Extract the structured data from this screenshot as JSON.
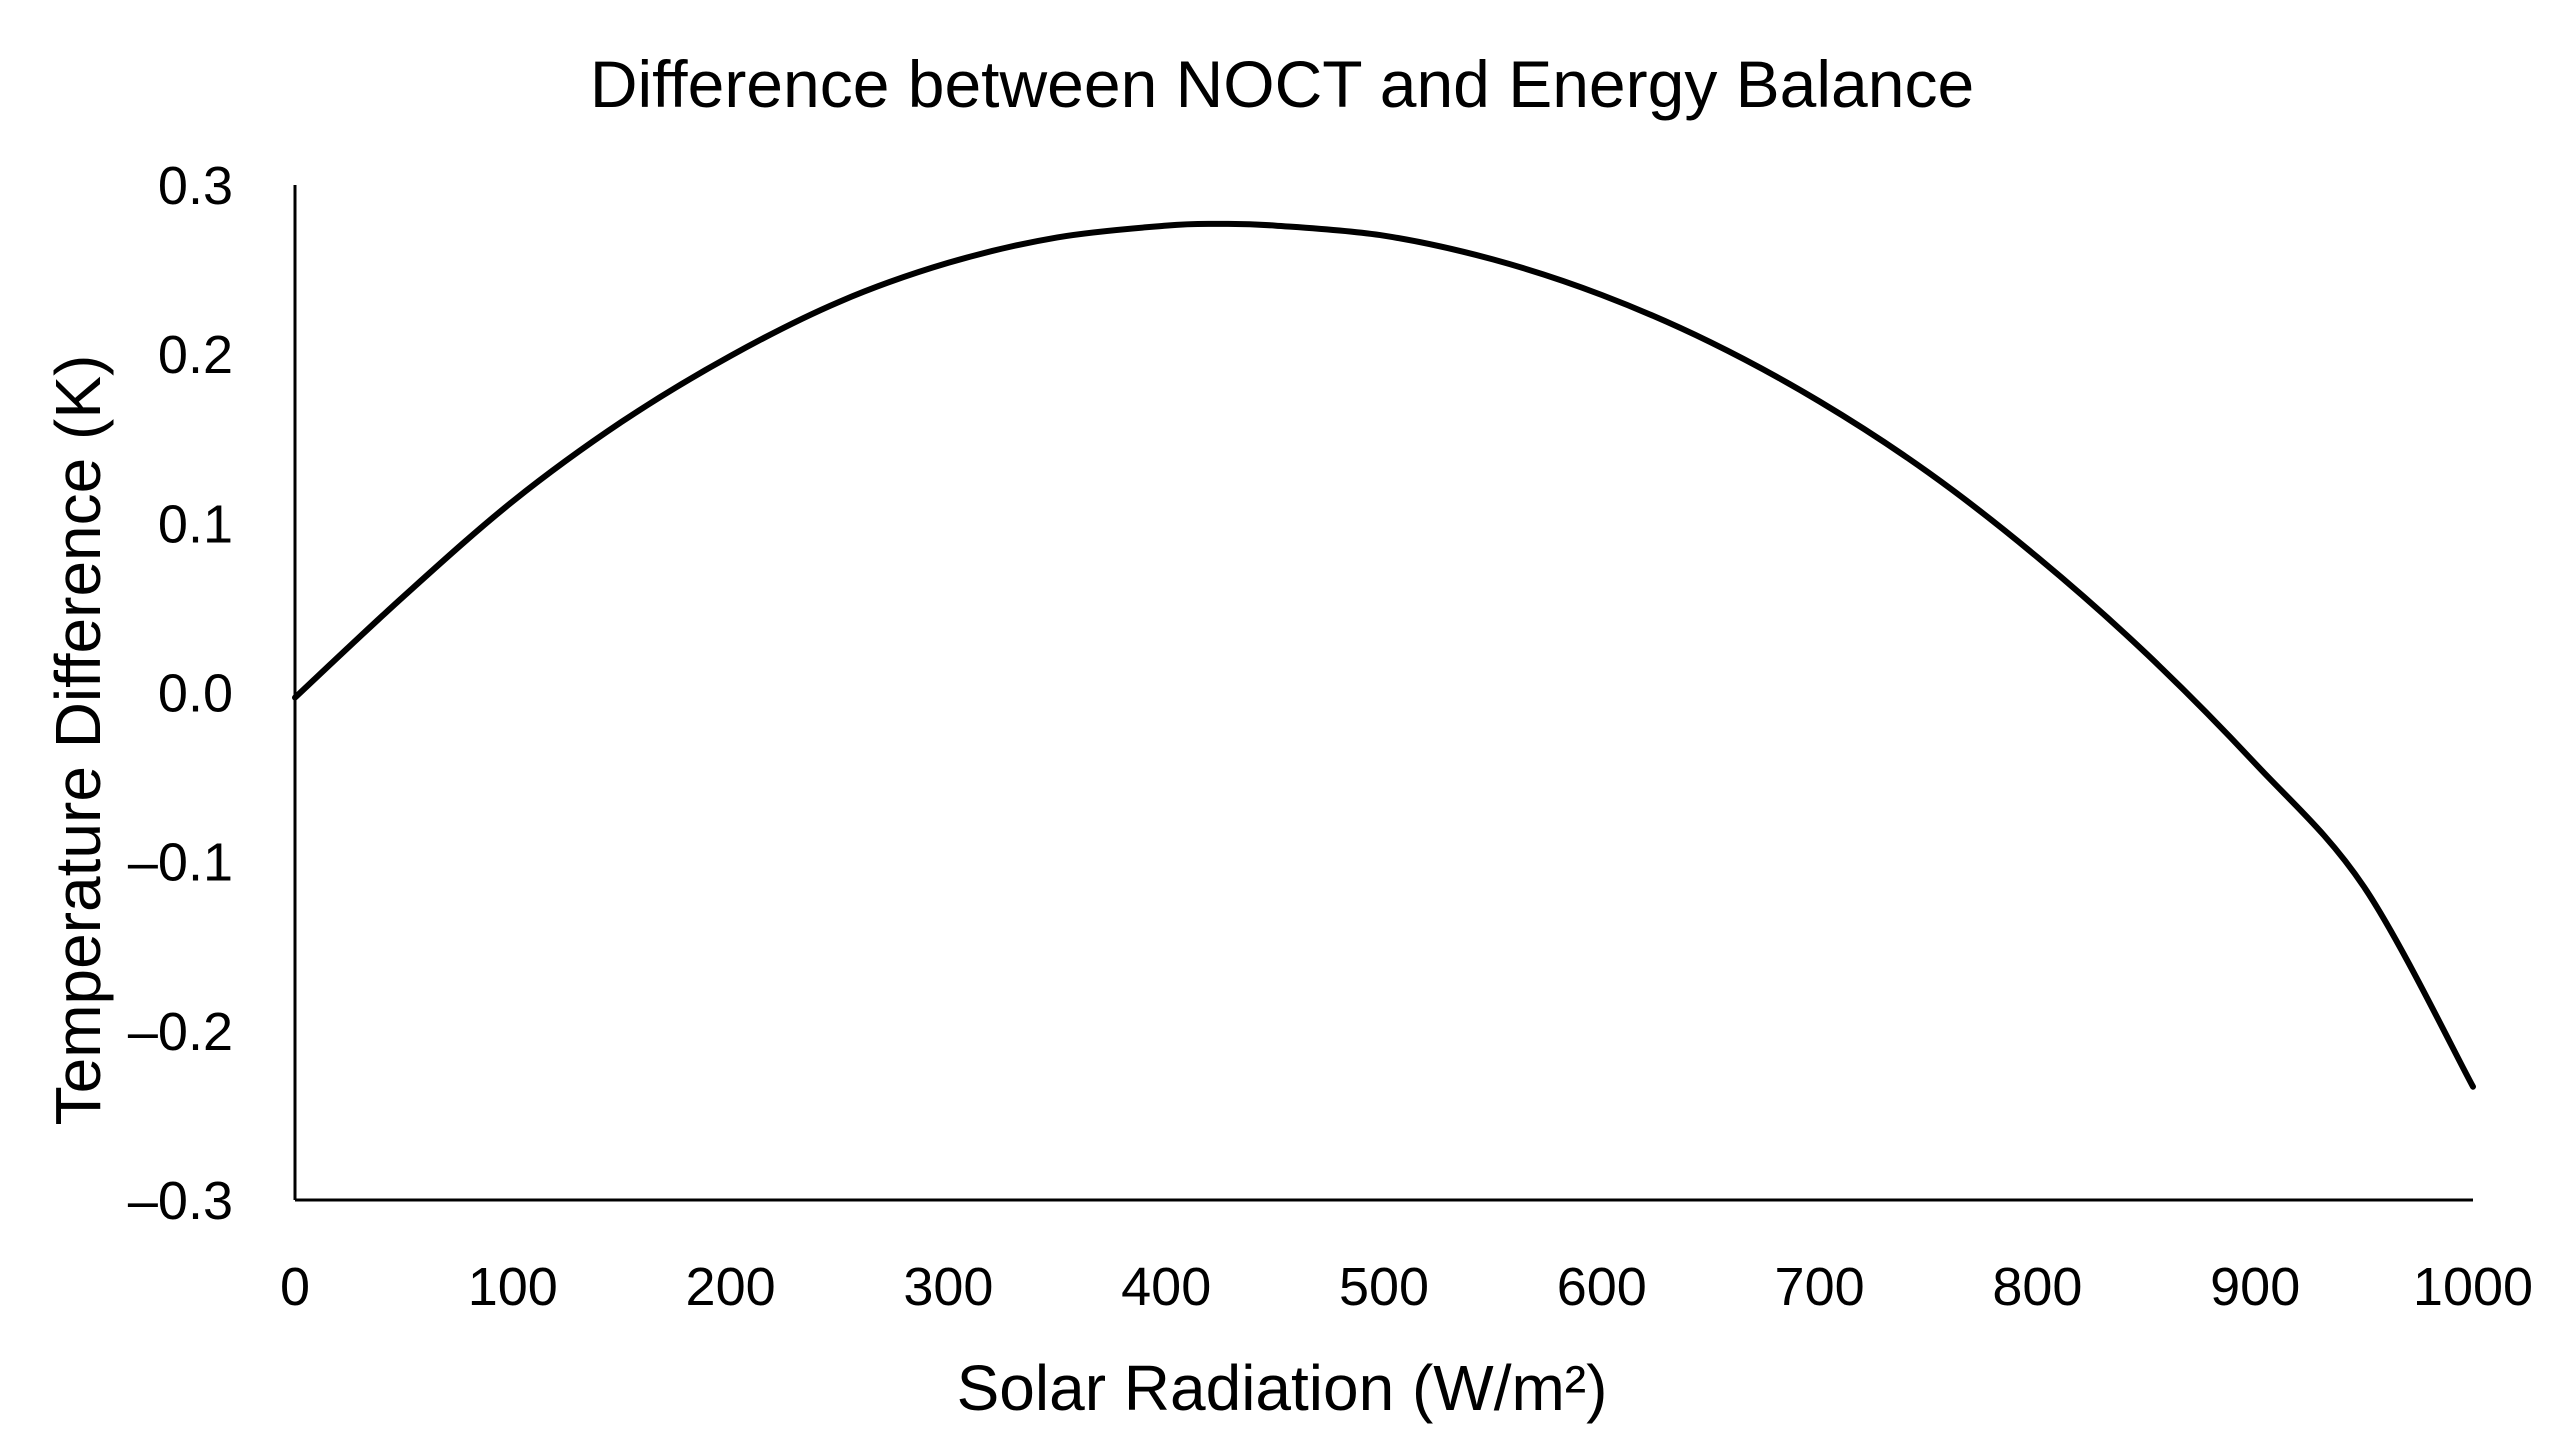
{
  "chart_data": {
    "type": "line",
    "title": "Difference between NOCT and Energy Balance",
    "xlabel": "Solar Radiation (W/m²)",
    "ylabel": "Temperature Difference (K)",
    "xlim": [
      0,
      1000
    ],
    "ylim": [
      -0.3,
      0.3
    ],
    "x_ticks": [
      0,
      100,
      200,
      300,
      400,
      500,
      600,
      700,
      800,
      900,
      1000
    ],
    "x_tick_labels": [
      "0",
      "100",
      "200",
      "300",
      "400",
      "500",
      "600",
      "700",
      "800",
      "900",
      "1000"
    ],
    "y_ticks": [
      0.3,
      0.2,
      0.1,
      0.0,
      -0.1,
      -0.2,
      -0.3
    ],
    "y_tick_labels": [
      "0.3",
      "0.2",
      "0.1",
      "0.0",
      "–0.1",
      "–0.2",
      "–0.3"
    ],
    "grid": false,
    "legend": "none",
    "line_color": "#000000",
    "series": [
      {
        "name": "Temperature Difference",
        "x": [
          0,
          50,
          100,
          150,
          200,
          250,
          300,
          350,
          400,
          425,
          450,
          500,
          550,
          600,
          650,
          700,
          750,
          800,
          850,
          900,
          950,
          1000
        ],
        "values": [
          -0.003,
          0.057,
          0.113,
          0.16,
          0.199,
          0.231,
          0.254,
          0.269,
          0.276,
          0.277,
          0.276,
          0.27,
          0.256,
          0.235,
          0.207,
          0.172,
          0.13,
          0.08,
          0.023,
          -0.042,
          -0.115,
          -0.233
        ]
      }
    ]
  }
}
